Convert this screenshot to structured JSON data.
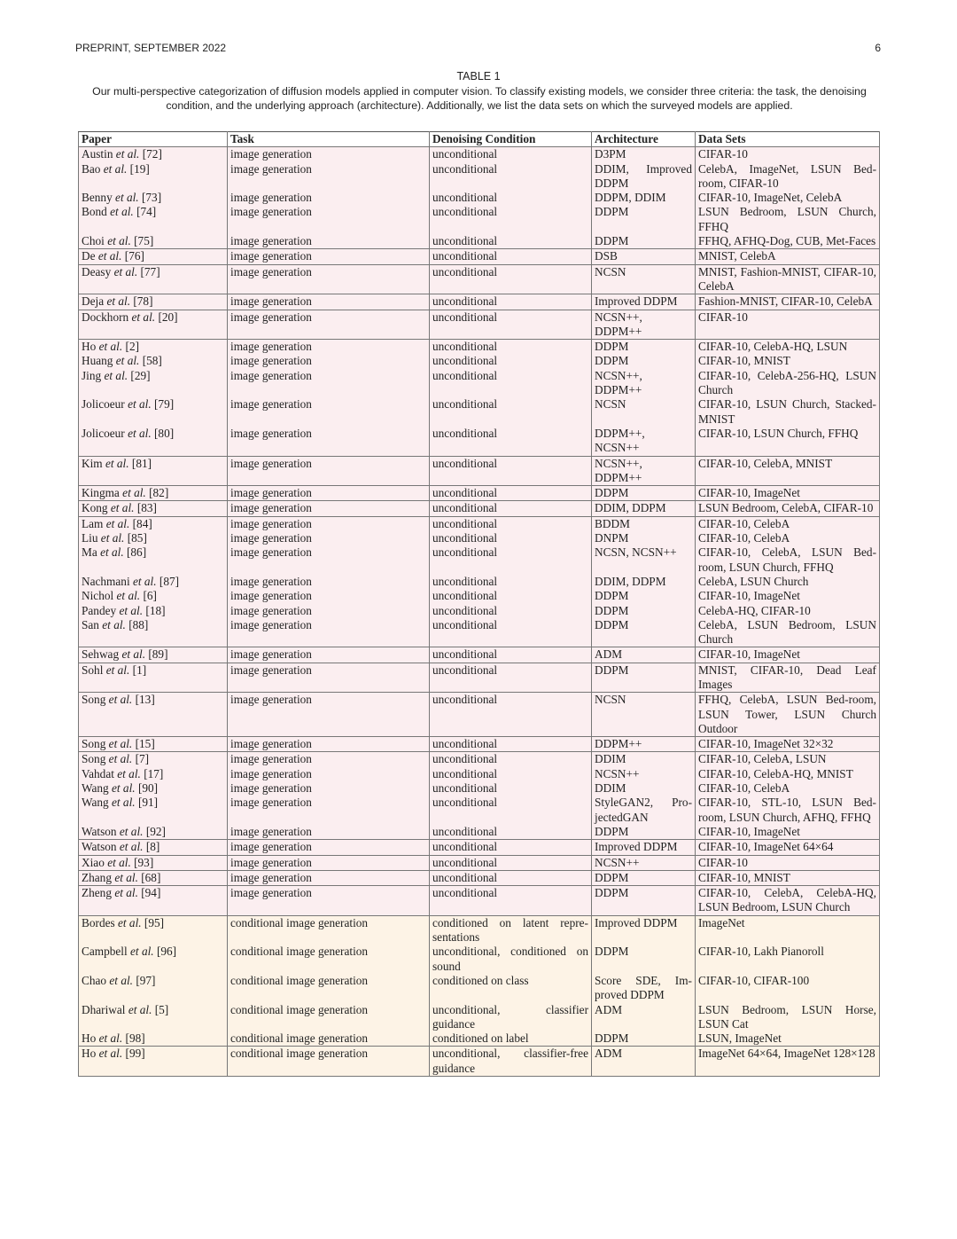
{
  "header": {
    "left": "PREPRINT, SEPTEMBER 2022",
    "page_number": "6"
  },
  "table": {
    "title": "TABLE 1",
    "caption": "Our multi-perspective categorization of diffusion models applied in computer vision. To classify existing models, we consider three criteria: the task, the denoising condition, and the underlying approach (architecture). Additionally, we list the data sets on which the surveyed models are applied.",
    "columns": [
      "Paper",
      "Task",
      "Denoising Condition",
      "Architecture",
      "Data Sets"
    ],
    "colors": {
      "unconditional_rows": "#fbeef0",
      "conditional_rows": "#fdf3e6"
    },
    "rows": [
      {
        "author": "Austin",
        "etal": "et al.",
        "ref": "[72]",
        "task": "image generation",
        "condition": "unconditional",
        "arch": "D3PM",
        "data": "CIFAR-10"
      },
      {
        "author": "Bao",
        "etal": "et al.",
        "ref": "[19]",
        "task": "image generation",
        "condition": "unconditional",
        "arch": "DDIM, Improved DDPM",
        "data": "CelebA, ImageNet, LSUN Bed-room, CIFAR-10"
      },
      {
        "author": "Benny",
        "etal": "et al.",
        "ref": "[73]",
        "task": "image generation",
        "condition": "unconditional",
        "arch": "DDPM, DDIM",
        "data": "CIFAR-10, ImageNet, CelebA"
      },
      {
        "author": "Bond",
        "etal": "et al.",
        "ref": "[74]",
        "task": "image generation",
        "condition": "unconditional",
        "arch": "DDPM",
        "data": "LSUN Bedroom, LSUN Church, FFHQ"
      },
      {
        "author": "Choi",
        "etal": "et al.",
        "ref": "[75]",
        "task": "image generation",
        "condition": "unconditional",
        "arch": "DDPM",
        "data": "FFHQ, AFHQ-Dog, CUB, Met-Faces"
      },
      {
        "author": "De",
        "etal": "et al.",
        "ref": "[76]",
        "task": "image generation",
        "condition": "unconditional",
        "arch": "DSB",
        "data": "MNIST, CelebA"
      },
      {
        "author": "Deasy",
        "etal": "et al.",
        "ref": "[77]",
        "task": "image generation",
        "condition": "unconditional",
        "arch": "NCSN",
        "data": "MNIST, Fashion-MNIST, CIFAR-10, CelebA"
      },
      {
        "author": "Deja",
        "etal": "et al.",
        "ref": "[78]",
        "task": "image generation",
        "condition": "unconditional",
        "arch": "Improved DDPM",
        "data": "Fashion-MNIST, CIFAR-10, CelebA"
      },
      {
        "author": "Dockhorn",
        "etal": "et al.",
        "ref": "[20]",
        "task": "image generation",
        "condition": "unconditional",
        "arch": "NCSN++, DDPM++",
        "data": "CIFAR-10"
      },
      {
        "author": "Ho",
        "etal": "et al.",
        "ref": "[2]",
        "task": "image generation",
        "condition": "unconditional",
        "arch": "DDPM",
        "data": "CIFAR-10, CelebA-HQ, LSUN"
      },
      {
        "author": "Huang",
        "etal": "et al.",
        "ref": "[58]",
        "task": "image generation",
        "condition": "unconditional",
        "arch": "DDPM",
        "data": "CIFAR-10, MNIST"
      },
      {
        "author": "Jing",
        "etal": "et al.",
        "ref": "[29]",
        "task": "image generation",
        "condition": "unconditional",
        "arch": "NCSN++, DDPM++",
        "data": "CIFAR-10, CelebA-256-HQ, LSUN Church"
      },
      {
        "author": "Jolicoeur",
        "etal": "et al.",
        "ref": "[79]",
        "task": "image generation",
        "condition": "unconditional",
        "arch": "NCSN",
        "data": "CIFAR-10, LSUN Church, Stacked-MNIST"
      },
      {
        "author": "Jolicoeur",
        "etal": "et al.",
        "ref": "[80]",
        "task": "image generation",
        "condition": "unconditional",
        "arch": "DDPM++, NCSN++",
        "data": "CIFAR-10, LSUN Church, FFHQ"
      },
      {
        "author": "Kim",
        "etal": "et al.",
        "ref": "[81]",
        "task": "image generation",
        "condition": "unconditional",
        "arch": "NCSN++, DDPM++",
        "data": "CIFAR-10, CelebA, MNIST"
      },
      {
        "author": "Kingma",
        "etal": "et al.",
        "ref": "[82]",
        "task": "image generation",
        "condition": "unconditional",
        "arch": "DDPM",
        "data": "CIFAR-10, ImageNet"
      },
      {
        "author": "Kong",
        "etal": "et al.",
        "ref": "[83]",
        "task": "image generation",
        "condition": "unconditional",
        "arch": "DDIM, DDPM",
        "data": "LSUN Bedroom, CelebA, CIFAR-10"
      },
      {
        "author": "Lam",
        "etal": "et al.",
        "ref": "[84]",
        "task": "image generation",
        "condition": "unconditional",
        "arch": "BDDM",
        "data": "CIFAR-10, CelebA"
      },
      {
        "author": "Liu",
        "etal": "et al.",
        "ref": "[85]",
        "task": "image generation",
        "condition": "unconditional",
        "arch": "DNPM",
        "data": "CIFAR-10, CelebA"
      },
      {
        "author": "Ma",
        "etal": "et al.",
        "ref": "[86]",
        "task": "image generation",
        "condition": "unconditional",
        "arch": "NCSN, NCSN++",
        "data": "CIFAR-10, CelebA, LSUN Bed-room, LSUN Church, FFHQ"
      },
      {
        "author": "Nachmani",
        "etal": "et al.",
        "ref": "[87]",
        "task": "image generation",
        "condition": "unconditional",
        "arch": "DDIM, DDPM",
        "data": "CelebA, LSUN Church"
      },
      {
        "author": "Nichol",
        "etal": "et al.",
        "ref": "[6]",
        "task": "image generation",
        "condition": "unconditional",
        "arch": "DDPM",
        "data": "CIFAR-10, ImageNet"
      },
      {
        "author": "Pandey",
        "etal": "et al.",
        "ref": "[18]",
        "task": "image generation",
        "condition": "unconditional",
        "arch": "DDPM",
        "data": "CelebA-HQ, CIFAR-10"
      },
      {
        "author": "San",
        "etal": "et al.",
        "ref": "[88]",
        "task": "image generation",
        "condition": "unconditional",
        "arch": "DDPM",
        "data": "CelebA, LSUN Bedroom, LSUN Church"
      },
      {
        "author": "Sehwag",
        "etal": "et al.",
        "ref": "[89]",
        "task": "image generation",
        "condition": "unconditional",
        "arch": "ADM",
        "data": "CIFAR-10, ImageNet"
      },
      {
        "author": "Sohl",
        "etal": "et al.",
        "ref": "[1]",
        "task": "image generation",
        "condition": "unconditional",
        "arch": "DDPM",
        "data": "MNIST, CIFAR-10, Dead Leaf Images"
      },
      {
        "author": "Song",
        "etal": "et al.",
        "ref": "[13]",
        "task": "image generation",
        "condition": "unconditional",
        "arch": "NCSN",
        "data": "FFHQ, CelebA, LSUN Bed-room, LSUN Tower, LSUN Church Outdoor"
      },
      {
        "author": "Song",
        "etal": "et al.",
        "ref": "[15]",
        "task": "image generation",
        "condition": "unconditional",
        "arch": "DDPM++",
        "data": "CIFAR-10, ImageNet 32×32"
      },
      {
        "author": "Song",
        "etal": "et al.",
        "ref": "[7]",
        "task": "image generation",
        "condition": "unconditional",
        "arch": "DDIM",
        "data": "CIFAR-10, CelebA, LSUN"
      },
      {
        "author": "Vahdat",
        "etal": "et al.",
        "ref": "[17]",
        "task": "image generation",
        "condition": "unconditional",
        "arch": "NCSN++",
        "data": "CIFAR-10, CelebA-HQ, MNIST"
      },
      {
        "author": "Wang",
        "etal": "et al.",
        "ref": "[90]",
        "task": "image generation",
        "condition": "unconditional",
        "arch": "DDIM",
        "data": "CIFAR-10, CelebA"
      },
      {
        "author": "Wang",
        "etal": "et al.",
        "ref": "[91]",
        "task": "image generation",
        "condition": "unconditional",
        "arch": "StyleGAN2, Pro-jectedGAN",
        "data": "CIFAR-10, STL-10, LSUN Bed-room, LSUN Church, AFHQ, FFHQ"
      },
      {
        "author": "Watson",
        "etal": "et al.",
        "ref": "[92]",
        "task": "image generation",
        "condition": "unconditional",
        "arch": "DDPM",
        "data": "CIFAR-10, ImageNet"
      },
      {
        "author": "Watson",
        "etal": "et al.",
        "ref": "[8]",
        "task": "image generation",
        "condition": "unconditional",
        "arch": "Improved DDPM",
        "data": "CIFAR-10, ImageNet 64×64"
      },
      {
        "author": "Xiao",
        "etal": "et al.",
        "ref": "[93]",
        "task": "image generation",
        "condition": "unconditional",
        "arch": "NCSN++",
        "data": "CIFAR-10"
      },
      {
        "author": "Zhang",
        "etal": "et al.",
        "ref": "[68]",
        "task": "image generation",
        "condition": "unconditional",
        "arch": "DDPM",
        "data": "CIFAR-10, MNIST"
      },
      {
        "author": "Zheng",
        "etal": "et al.",
        "ref": "[94]",
        "task": "image generation",
        "condition": "unconditional",
        "arch": "DDPM",
        "data": "CIFAR-10, CelebA, CelebA-HQ, LSUN Bedroom, LSUN Church"
      },
      {
        "author": "Bordes",
        "etal": "et al.",
        "ref": "[95]",
        "task": "conditional image generation",
        "condition": "conditioned on latent repre-sentations",
        "arch": "Improved DDPM",
        "data": "ImageNet"
      },
      {
        "author": "Campbell",
        "etal": "et al.",
        "ref": "[96]",
        "task": "conditional image generation",
        "condition": "unconditional, conditioned on sound",
        "arch": "DDPM",
        "data": "CIFAR-10, Lakh Pianoroll"
      },
      {
        "author": "Chao",
        "etal": "et al.",
        "ref": "[97]",
        "task": "conditional image generation",
        "condition": "conditioned on class",
        "arch": "Score SDE, Im-proved DDPM",
        "data": "CIFAR-10, CIFAR-100"
      },
      {
        "author": "Dhariwal",
        "etal": "et al.",
        "ref": "[5]",
        "task": "conditional image generation",
        "condition": "unconditional, classifier guidance",
        "arch": "ADM",
        "data": "LSUN Bedroom, LSUN Horse, LSUN Cat"
      },
      {
        "author": "Ho",
        "etal": "et al.",
        "ref": "[98]",
        "task": "conditional image generation",
        "condition": "conditioned on label",
        "arch": "DDPM",
        "data": "LSUN, ImageNet"
      },
      {
        "author": "Ho",
        "etal": "et al.",
        "ref": "[99]",
        "task": "conditional image generation",
        "condition": "unconditional, classifier-free guidance",
        "arch": "ADM",
        "data": "ImageNet 64×64, ImageNet 128×128"
      }
    ]
  }
}
